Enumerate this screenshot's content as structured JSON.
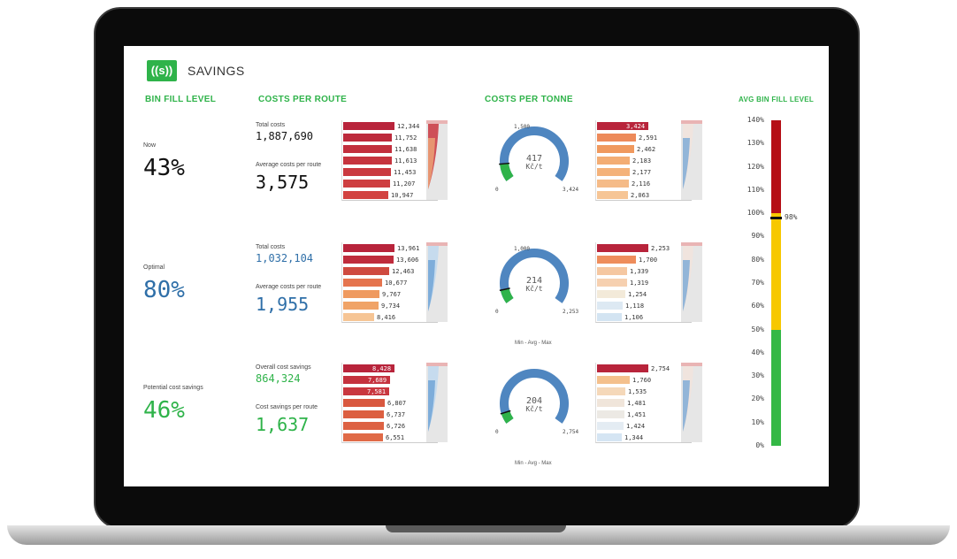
{
  "app": {
    "logo": "((s))",
    "title": "SAVINGS"
  },
  "sections": {
    "bin_fill": "BIN FILL LEVEL",
    "costs_route": "COSTS PER ROUTE",
    "costs_tonne": "COSTS PER TONNE",
    "avg_bin": "AVG BIN FILL LEVEL"
  },
  "rows": [
    {
      "fill_label": "Now",
      "fill_value": "43%",
      "fill_color": "#111111",
      "kpi1_label": "Total costs",
      "kpi1_value": "1,887,690",
      "kpi2_label": "Average costs per route",
      "kpi2_value": "3,575",
      "kpi_color": "#111111",
      "route_bars": [
        12344,
        11752,
        11638,
        11613,
        11453,
        11207,
        10947
      ],
      "route_labels": [
        "12,344",
        "11,752",
        "11,638",
        "11,613",
        "11,453",
        "11,207",
        "10,947"
      ],
      "route_colors": [
        "#b8243b",
        "#bd2a3c",
        "#c22f3d",
        "#c6343e",
        "#ca393f",
        "#ce3e40",
        "#d24341"
      ],
      "gauge_min": "0",
      "gauge_max": "3,424",
      "gauge_top": "1,500",
      "gauge_value": "417",
      "gauge_unit": "Kč/t",
      "gauge_fill": 0.122,
      "tonne_bars": [
        3424,
        2591,
        2462,
        2183,
        2177,
        2116,
        2063
      ],
      "tonne_labels": [
        "3,424",
        "2,591",
        "2,462",
        "2,183",
        "2,177",
        "2,116",
        "2,063"
      ],
      "tonne_colors": [
        "#b8243b",
        "#ed8a5a",
        "#f0995e",
        "#f3ad74",
        "#f4b27a",
        "#f5bb88",
        "#f6c595"
      ],
      "minavgmax": ""
    },
    {
      "fill_label": "Optimal",
      "fill_value": "80%",
      "fill_color": "#2f6fa8",
      "kpi1_label": "Total costs",
      "kpi1_value": "1,032,104",
      "kpi2_label": "Average costs per route",
      "kpi2_value": "1,955",
      "kpi_color": "#2f6fa8",
      "route_bars": [
        13961,
        13606,
        12463,
        10677,
        9767,
        9734,
        8416
      ],
      "route_labels": [
        "13,961",
        "13,606",
        "12,463",
        "10,677",
        "9,767",
        "9,734",
        "8,416"
      ],
      "route_colors": [
        "#b8243b",
        "#bf2c3c",
        "#cf4a3f",
        "#e5744e",
        "#ef9a60",
        "#f0a367",
        "#f6c595"
      ],
      "gauge_min": "0",
      "gauge_max": "2,253",
      "gauge_top": "1,000",
      "gauge_value": "214",
      "gauge_unit": "Kč/t",
      "gauge_fill": 0.095,
      "tonne_bars": [
        2253,
        1700,
        1339,
        1319,
        1254,
        1118,
        1106
      ],
      "tonne_labels": [
        "2,253",
        "1,700",
        "1,339",
        "1,319",
        "1,254",
        "1,118",
        "1,106"
      ],
      "tonne_colors": [
        "#b8243b",
        "#ee8d5c",
        "#f5c7a1",
        "#f6d0b0",
        "#f3ead9",
        "#dde9f3",
        "#d3e4f2"
      ],
      "minavgmax": "Min - Avg - Max"
    },
    {
      "fill_label": "Potential cost savings",
      "fill_value": "46%",
      "fill_color": "#2fb34a",
      "kpi1_label": "Overall cost savings",
      "kpi1_value": "864,324",
      "kpi2_label": "Cost savings per route",
      "kpi2_value": "1,637",
      "kpi_color": "#2fb34a",
      "route_bars": [
        8428,
        7689,
        7581,
        6807,
        6737,
        6726,
        6551
      ],
      "route_labels": [
        "8,428",
        "7,689",
        "7,581",
        "6,807",
        "6,737",
        "6,726",
        "6,551"
      ],
      "route_colors": [
        "#b8243b",
        "#c5323e",
        "#c9373f",
        "#d9583f",
        "#dc5f41",
        "#dd6243",
        "#e06a47"
      ],
      "gauge_min": "0",
      "gauge_max": "2,754",
      "gauge_top": "",
      "gauge_value": "204",
      "gauge_unit": "Kč/t",
      "gauge_fill": 0.074,
      "tonne_bars": [
        2754,
        1760,
        1535,
        1481,
        1451,
        1424,
        1344
      ],
      "tonne_labels": [
        "2,754",
        "1,760",
        "1,535",
        "1,481",
        "1,451",
        "1,424",
        "1,344"
      ],
      "tonne_colors": [
        "#b8243b",
        "#f4c08c",
        "#f5d8b9",
        "#f0e5da",
        "#ece9e4",
        "#e4ecf3",
        "#d5e5f3"
      ],
      "minavgmax": "Min - Avg - Max"
    }
  ],
  "avg_bin": {
    "value": 98,
    "value_label": "98%",
    "ticks": [
      "140%",
      "130%",
      "120%",
      "110%",
      "100%",
      "90%",
      "80%",
      "70%",
      "60%",
      "50%",
      "40%",
      "30%",
      "20%",
      "10%",
      "0%"
    ],
    "colors": {
      "red": "#b50f16",
      "yellow": "#f7c800",
      "green": "#34b845"
    }
  }
}
